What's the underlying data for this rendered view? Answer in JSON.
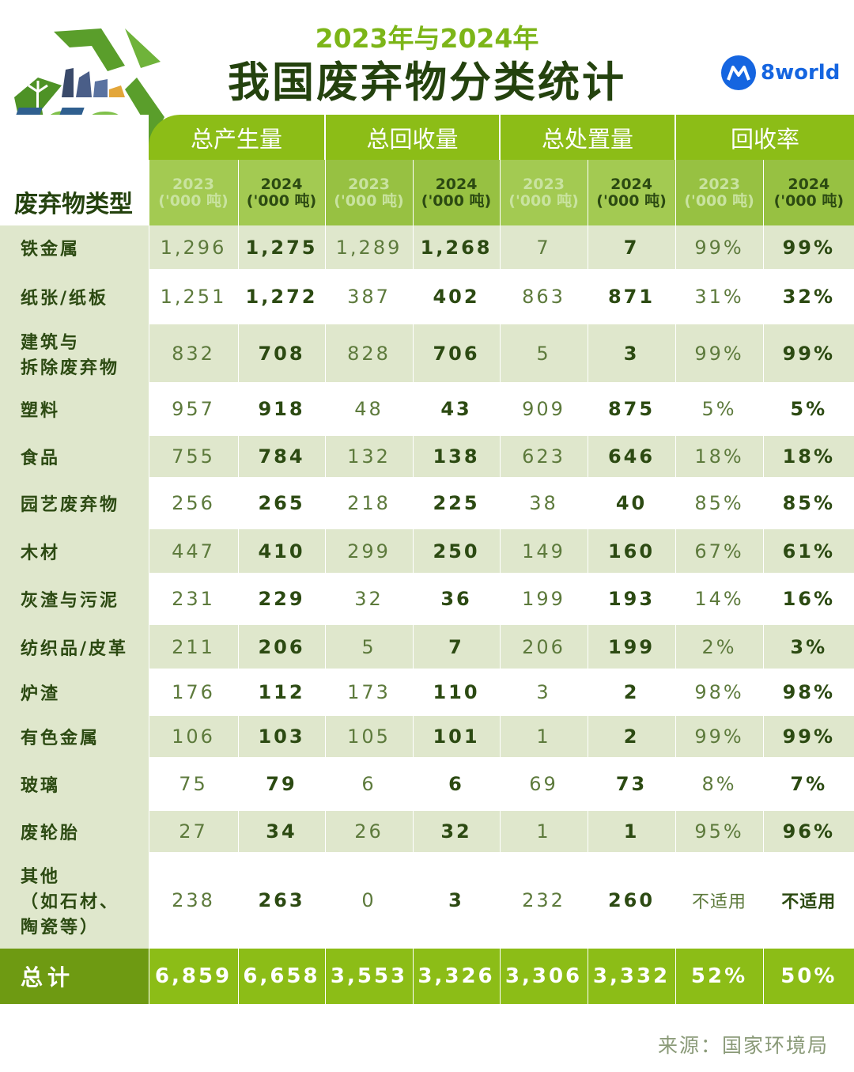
{
  "header": {
    "subtitle": "2023年与2024年",
    "title": "我国废弃物分类统计",
    "brand": "8world"
  },
  "colors": {
    "accent": "#8cbd17",
    "dark_green": "#24420e",
    "row_shade": "#dfe7cc",
    "brand_blue": "#1565e0"
  },
  "icons": {
    "recycle": "recycle-city-logo",
    "brand": "8world-logo-icon"
  },
  "table": {
    "corner_label": "废弃物类型",
    "groups": [
      "总产生量",
      "总回收量",
      "总处置量",
      "回收率"
    ],
    "year_2023": "2023",
    "year_2024": "2024",
    "unit": "('000 吨)",
    "rows": [
      {
        "label": "铁金属",
        "v": [
          "1,296",
          "1,275",
          "1,289",
          "1,268",
          "7",
          "7",
          "99%",
          "99%"
        ]
      },
      {
        "label": "纸张/纸板",
        "v": [
          "1,251",
          "1,272",
          "387",
          "402",
          "863",
          "871",
          "31%",
          "32%"
        ]
      },
      {
        "label": "建筑与\n拆除废弃物",
        "v": [
          "832",
          "708",
          "828",
          "706",
          "5",
          "3",
          "99%",
          "99%"
        ]
      },
      {
        "label": "塑料",
        "v": [
          "957",
          "918",
          "48",
          "43",
          "909",
          "875",
          "5%",
          "5%"
        ]
      },
      {
        "label": "食品",
        "v": [
          "755",
          "784",
          "132",
          "138",
          "623",
          "646",
          "18%",
          "18%"
        ]
      },
      {
        "label": "园艺废弃物",
        "v": [
          "256",
          "265",
          "218",
          "225",
          "38",
          "40",
          "85%",
          "85%"
        ]
      },
      {
        "label": "木材",
        "v": [
          "447",
          "410",
          "299",
          "250",
          "149",
          "160",
          "67%",
          "61%"
        ]
      },
      {
        "label": "灰渣与污泥",
        "v": [
          "231",
          "229",
          "32",
          "36",
          "199",
          "193",
          "14%",
          "16%"
        ]
      },
      {
        "label": "纺织品/皮革",
        "v": [
          "211",
          "206",
          "5",
          "7",
          "206",
          "199",
          "2%",
          "3%"
        ]
      },
      {
        "label": "炉渣",
        "v": [
          "176",
          "112",
          "173",
          "110",
          "3",
          "2",
          "98%",
          "98%"
        ]
      },
      {
        "label": "有色金属",
        "v": [
          "106",
          "103",
          "105",
          "101",
          "1",
          "2",
          "99%",
          "99%"
        ]
      },
      {
        "label": "玻璃",
        "v": [
          "75",
          "79",
          "6",
          "6",
          "69",
          "73",
          "8%",
          "7%"
        ]
      },
      {
        "label": "废轮胎",
        "v": [
          "27",
          "34",
          "26",
          "32",
          "1",
          "1",
          "95%",
          "96%"
        ]
      },
      {
        "label": "其他\n（如石材、\n陶瓷等）",
        "v": [
          "238",
          "263",
          "0",
          "3",
          "232",
          "260",
          "不适用",
          "不适用"
        ]
      }
    ],
    "total": {
      "label": "总计",
      "v": [
        "6,859",
        "6,658",
        "3,553",
        "3,326",
        "3,306",
        "3,332",
        "52%",
        "50%"
      ]
    }
  },
  "footer": {
    "source": "来源：国家环境局"
  }
}
